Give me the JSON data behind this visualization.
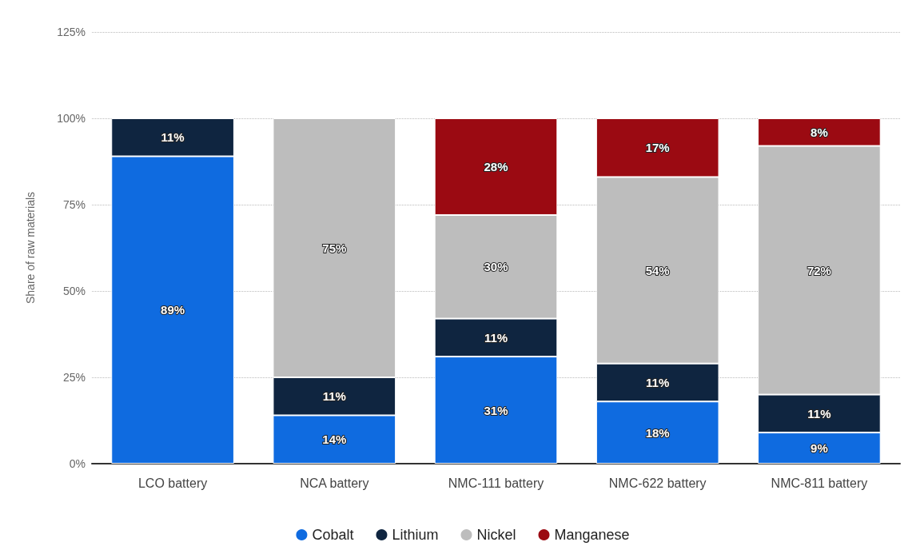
{
  "chart_data": {
    "type": "bar",
    "stacked": true,
    "ylabel": "Share of raw materials",
    "categories": [
      "LCO battery",
      "NCA battery",
      "NMC-111 battery",
      "NMC-622 battery",
      "NMC-811 battery"
    ],
    "series": [
      {
        "name": "Cobalt",
        "color": "#0f6be0",
        "values": [
          89,
          14,
          31,
          18,
          9
        ],
        "value_labels": [
          "89%",
          "14%",
          "31%",
          "18%",
          "9%"
        ]
      },
      {
        "name": "Lithium",
        "color": "#0f2540",
        "values": [
          11,
          11,
          11,
          11,
          11
        ],
        "value_labels": [
          "11%",
          "11%",
          "11%",
          "11%",
          "11%"
        ]
      },
      {
        "name": "Nickel",
        "color": "#bdbdbd",
        "values": [
          null,
          75,
          30,
          54,
          72
        ],
        "value_labels": [
          null,
          "75%",
          "30%",
          "54%",
          "72%"
        ]
      },
      {
        "name": "Manganese",
        "color": "#9b0a12",
        "values": [
          null,
          null,
          28,
          17,
          8
        ],
        "value_labels": [
          null,
          null,
          "28%",
          "17%",
          "8%"
        ]
      }
    ],
    "ylim": [
      0,
      125
    ],
    "yticks": [
      {
        "value": 0,
        "label": "0%"
      },
      {
        "value": 25,
        "label": "25%"
      },
      {
        "value": 50,
        "label": "50%"
      },
      {
        "value": 75,
        "label": "75%"
      },
      {
        "value": 100,
        "label": "100%"
      },
      {
        "value": 125,
        "label": "125%"
      }
    ],
    "grid": "y",
    "legend": "bottom"
  }
}
